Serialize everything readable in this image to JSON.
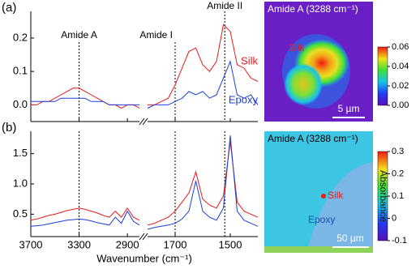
{
  "chart_data": [
    {
      "type": "line",
      "panel_label": "(a)",
      "xlim": [
        [
          3700,
          2800
        ],
        [
          1800,
          1400
        ]
      ],
      "x": [
        3700,
        3650,
        3600,
        3550,
        3500,
        3450,
        3400,
        3350,
        3300,
        3250,
        3200,
        3150,
        3100,
        3050,
        3000,
        2950,
        2900,
        2850,
        2800,
        1800,
        1775,
        1750,
        1725,
        1700,
        1675,
        1650,
        1625,
        1600,
        1575,
        1550,
        1525,
        1500,
        1475,
        1450,
        1425,
        1400
      ],
      "xticks": [
        3700,
        3300,
        2900,
        1700,
        1500
      ],
      "ylim": [
        -0.05,
        0.28
      ],
      "yticks": [
        {
          "value": 0,
          "label": "0.0"
        },
        0.1,
        0.2
      ],
      "series": [
        {
          "name": "Silk",
          "color": "#e8191c",
          "values": [
            0.0,
            0.0,
            0.01,
            0.01,
            0.02,
            0.03,
            0.04,
            0.05,
            0.05,
            0.04,
            0.03,
            0.02,
            0.01,
            0.0,
            0.0,
            -0.01,
            0.0,
            0.0,
            -0.01,
            0.0,
            0.0,
            0.01,
            0.02,
            0.06,
            0.11,
            0.16,
            0.17,
            0.12,
            0.1,
            0.13,
            0.24,
            0.22,
            0.12,
            0.11,
            0.08,
            0.07
          ]
        },
        {
          "name": "Epoxy",
          "color": "#1a3fd6",
          "values": [
            0.01,
            0.01,
            0.01,
            0.01,
            0.01,
            0.02,
            0.02,
            0.02,
            0.02,
            0.02,
            0.01,
            0.01,
            0.01,
            0.0,
            0.0,
            0.0,
            0.0,
            0.0,
            0.0,
            -0.01,
            0.0,
            0.0,
            0.0,
            0.01,
            0.02,
            0.04,
            0.03,
            0.04,
            0.02,
            0.03,
            0.08,
            0.13,
            0.03,
            0.02,
            0.03,
            0.0
          ]
        }
      ],
      "annotations": [
        {
          "text": "Amide A",
          "x": 3300
        },
        {
          "text": "Amide I",
          "x": 1700
        },
        {
          "text": "Amide II",
          "x": 1520
        }
      ]
    },
    {
      "type": "line",
      "panel_label": "(b)",
      "xlabel": "Wavenumber (cm⁻¹)",
      "xlim": [
        [
          3700,
          2800
        ],
        [
          1800,
          1400
        ]
      ],
      "x": [
        3700,
        3650,
        3600,
        3550,
        3500,
        3450,
        3400,
        3350,
        3300,
        3250,
        3200,
        3150,
        3100,
        3050,
        3000,
        2950,
        2900,
        2850,
        2800,
        1800,
        1775,
        1750,
        1725,
        1700,
        1675,
        1650,
        1625,
        1600,
        1575,
        1550,
        1525,
        1500,
        1475,
        1450,
        1425,
        1400
      ],
      "xticks": [
        3700,
        3300,
        2900,
        1700,
        1500
      ],
      "ylim": [
        0.13,
        1.87
      ],
      "yticks": [
        0.5,
        {
          "value": 1,
          "label": "1.0"
        },
        1.5
      ],
      "series": [
        {
          "color": "#e8191c",
          "values": [
            0.4,
            0.42,
            0.45,
            0.48,
            0.5,
            0.53,
            0.56,
            0.58,
            0.6,
            0.58,
            0.55,
            0.52,
            0.48,
            0.45,
            0.55,
            0.45,
            0.6,
            0.45,
            0.4,
            0.32,
            0.35,
            0.4,
            0.45,
            0.55,
            0.7,
            0.85,
            1.2,
            0.75,
            0.65,
            0.6,
            0.8,
            1.7,
            0.7,
            0.55,
            0.5,
            0.45
          ]
        },
        {
          "color": "#1a3fd6",
          "values": [
            0.3,
            0.31,
            0.32,
            0.34,
            0.36,
            0.38,
            0.4,
            0.41,
            0.42,
            0.41,
            0.39,
            0.36,
            0.34,
            0.32,
            0.45,
            0.35,
            0.55,
            0.38,
            0.32,
            0.25,
            0.28,
            0.3,
            0.32,
            0.35,
            0.42,
            0.55,
            1.05,
            0.55,
            0.45,
            0.4,
            0.6,
            1.8,
            0.55,
            0.4,
            0.35,
            0.3
          ]
        }
      ],
      "reference_lines": [
        3300,
        1700,
        1520
      ]
    },
    {
      "type": "heatmap",
      "title": "Amide A (3288 cm⁻¹)",
      "labels": [
        "Silk"
      ],
      "scale_bar": "5 µm",
      "clim": [
        0,
        0.06
      ],
      "cticks": [
        {
          "value": 0,
          "label": "0.00"
        },
        0.02,
        0.04,
        0.06
      ]
    },
    {
      "type": "heatmap",
      "title": "Amide A (3288 cm⁻¹)",
      "labels": [
        "Silk",
        "Epoxy"
      ],
      "scale_bar": "50 µm",
      "colorbar_label": "Absorbance",
      "clim": [
        -0.1,
        0.3
      ],
      "cticks": [
        -0.1,
        0,
        0.1,
        0.2,
        0.3
      ]
    }
  ]
}
